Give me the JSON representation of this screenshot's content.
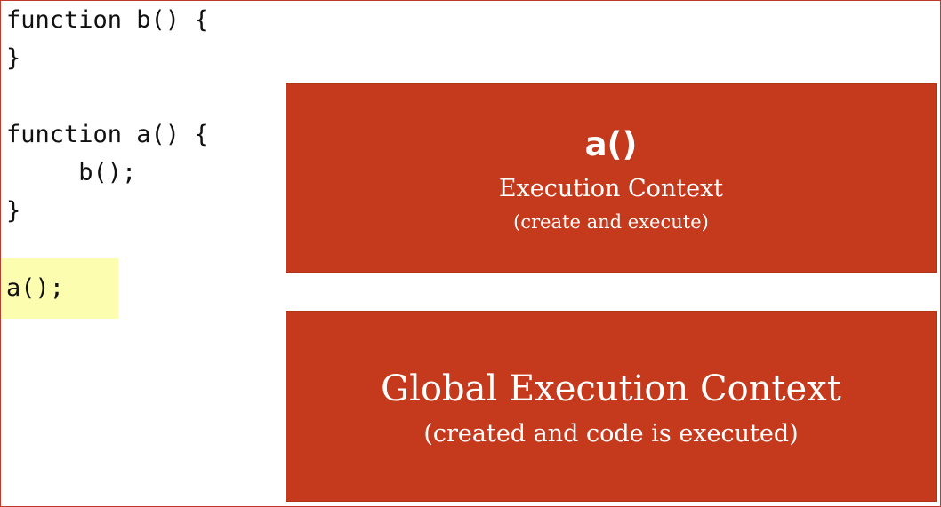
{
  "code": {
    "lines": [
      "function b() {",
      "}",
      "",
      "function a() {",
      "     b();",
      "}"
    ],
    "highlighted_line": "a();",
    "highlight_color": "#fdfdb0"
  },
  "stack": {
    "top": {
      "title": "a()",
      "subtitle": "Execution Context",
      "note": "(create and execute)"
    },
    "bottom": {
      "title": "Global Execution Context",
      "note": "(created and code is executed)"
    },
    "box_color": "#c5391c"
  }
}
